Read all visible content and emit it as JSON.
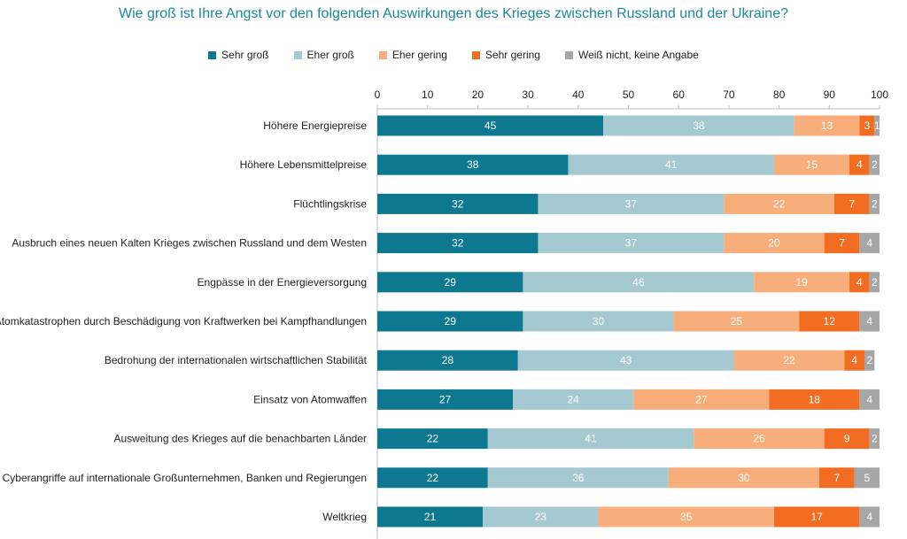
{
  "chart_data": {
    "type": "bar",
    "orientation": "horizontal-stacked",
    "title": "Wie groß ist Ihre Angst vor den folgenden Auswirkungen des Krieges zwischen Russland und der Ukraine?",
    "xlim": [
      0,
      100
    ],
    "ticks": [
      0,
      10,
      20,
      30,
      40,
      50,
      60,
      70,
      80,
      90,
      100
    ],
    "legend_position": "top",
    "categories": [
      "Höhere Energiepreise",
      "Höhere Lebensmittelpreise",
      "Flüchtlingskrise",
      "Ausbruch eines neuen Kalten Krieges zwischen Russland und dem Westen",
      "Engpässe in der Energieversorgung",
      "Atomkatastrophen durch Beschädigung von Kraftwerken bei Kampfhandlungen",
      "Bedrohung der internationalen wirtschaftlichen Stabilität",
      "Einsatz von Atomwaffen",
      "Ausweitung des Krieges auf die benachbarten Länder",
      "Cyberangriffe auf internationale Großunternehmen, Banken und Regierungen",
      "Weltkrieg"
    ],
    "series": [
      {
        "name": "Sehr groß",
        "color": "#0e7891",
        "label_color": "#ffffff",
        "values": [
          45,
          38,
          32,
          32,
          29,
          29,
          28,
          27,
          22,
          22,
          21
        ]
      },
      {
        "name": "Eher groß",
        "color": "#a4c9d1",
        "label_color": "#ffffff",
        "values": [
          38,
          41,
          37,
          37,
          46,
          30,
          43,
          24,
          41,
          36,
          23
        ]
      },
      {
        "name": "Eher gering",
        "color": "#f7ae7b",
        "label_color": "#ffffff",
        "values": [
          13,
          15,
          22,
          20,
          19,
          25,
          22,
          27,
          26,
          30,
          35
        ]
      },
      {
        "name": "Sehr gering",
        "color": "#f26d21",
        "label_color": "#ffffff",
        "values": [
          3,
          4,
          7,
          7,
          4,
          12,
          4,
          18,
          9,
          7,
          17
        ]
      },
      {
        "name": "Weiß nicht, keine Angabe",
        "color": "#a6a6a6",
        "label_color": "#ffffff",
        "values": [
          1,
          2,
          2,
          4,
          2,
          4,
          2,
          4,
          2,
          5,
          4
        ]
      }
    ]
  }
}
